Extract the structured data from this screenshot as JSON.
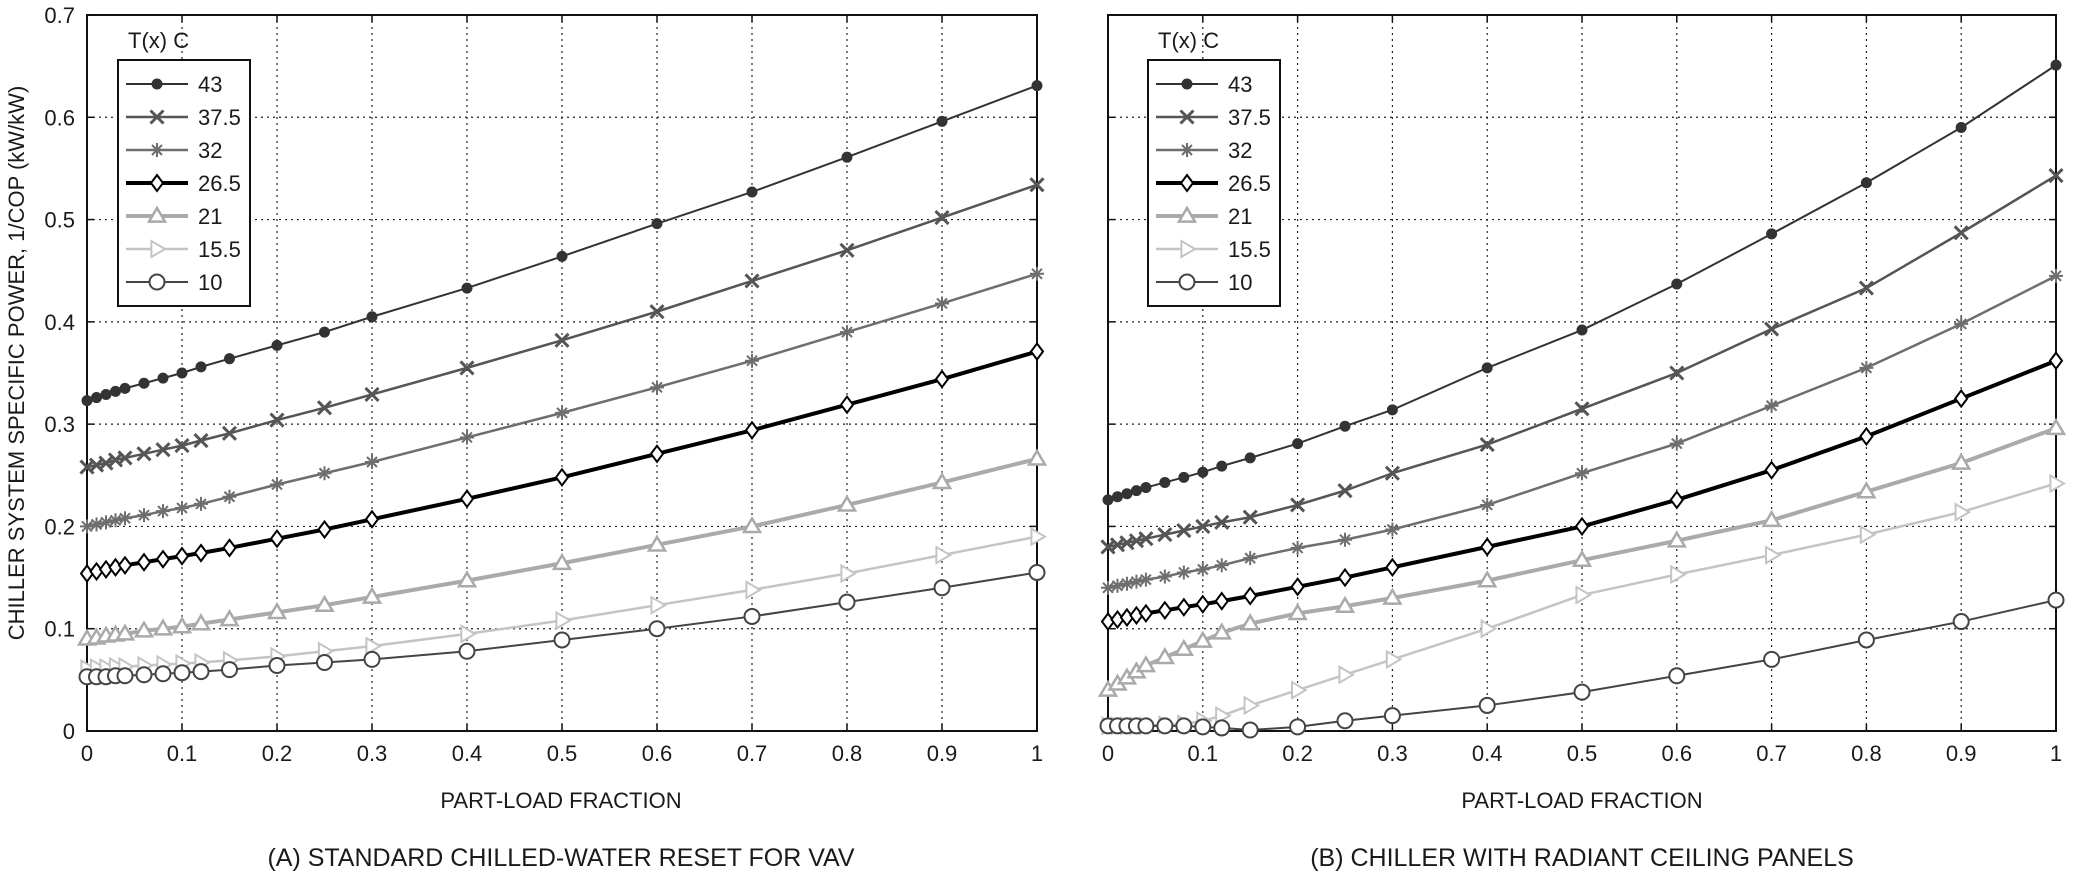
{
  "figure": {
    "ylabel": "CHILLER SYSTEM SPECIFIC POWER, 1/COP (kW/kW)"
  },
  "chart_data": [
    {
      "type": "line",
      "caption": "(A)  STANDARD CHILLED-WATER RESET FOR VAV",
      "xlabel": "PART-LOAD FRACTION",
      "ylabel": "CHILLER SYSTEM SPECIFIC POWER, 1/COP (kW/kW)",
      "xlim": [
        0,
        1
      ],
      "ylim": [
        0,
        0.7
      ],
      "xticks": [
        "0",
        "0.1",
        "0.2",
        "0.3",
        "0.4",
        "0.5",
        "0.6",
        "0.7",
        "0.8",
        "0.9",
        "1"
      ],
      "yticks": [
        "0",
        "0.1",
        "0.2",
        "0.3",
        "0.4",
        "0.5",
        "0.6",
        "0.7"
      ],
      "grid": true,
      "legend": {
        "title": "T(x) C",
        "position": "top-left"
      },
      "x": [
        0,
        0.01,
        0.02,
        0.03,
        0.04,
        0.06,
        0.08,
        0.1,
        0.12,
        0.15,
        0.2,
        0.25,
        0.3,
        0.4,
        0.5,
        0.6,
        0.7,
        0.8,
        0.9,
        1.0
      ],
      "series": [
        {
          "name": "43",
          "color": "#333333",
          "width": 2,
          "marker": "dot",
          "values": [
            0.323,
            0.326,
            0.329,
            0.332,
            0.335,
            0.34,
            0.345,
            0.35,
            0.356,
            0.364,
            0.377,
            0.39,
            0.405,
            0.433,
            0.464,
            0.496,
            0.527,
            0.561,
            0.596,
            0.631
          ]
        },
        {
          "name": "37.5",
          "color": "#555555",
          "width": 2.5,
          "marker": "x",
          "values": [
            0.258,
            0.26,
            0.262,
            0.265,
            0.267,
            0.271,
            0.275,
            0.279,
            0.284,
            0.291,
            0.304,
            0.316,
            0.329,
            0.355,
            0.382,
            0.41,
            0.44,
            0.47,
            0.502,
            0.534
          ]
        },
        {
          "name": "32",
          "color": "#6e6e6e",
          "width": 2.5,
          "marker": "star",
          "values": [
            0.2,
            0.202,
            0.204,
            0.206,
            0.208,
            0.211,
            0.215,
            0.218,
            0.222,
            0.229,
            0.241,
            0.252,
            0.263,
            0.287,
            0.311,
            0.336,
            0.362,
            0.39,
            0.418,
            0.447
          ]
        },
        {
          "name": "26.5",
          "color": "#000000",
          "width": 4,
          "marker": "diamond",
          "values": [
            0.154,
            0.156,
            0.158,
            0.16,
            0.162,
            0.165,
            0.168,
            0.171,
            0.174,
            0.179,
            0.188,
            0.197,
            0.207,
            0.227,
            0.248,
            0.271,
            0.294,
            0.319,
            0.344,
            0.371
          ]
        },
        {
          "name": "21",
          "color": "#aaaaaa",
          "width": 4,
          "marker": "triangle-up",
          "values": [
            0.09,
            0.091,
            0.093,
            0.094,
            0.095,
            0.098,
            0.1,
            0.102,
            0.105,
            0.109,
            0.116,
            0.123,
            0.131,
            0.147,
            0.164,
            0.182,
            0.2,
            0.221,
            0.243,
            0.266
          ]
        },
        {
          "name": "15.5",
          "color": "#c4c4c4",
          "width": 2.5,
          "marker": "triangle-right",
          "values": [
            0.061,
            0.062,
            0.062,
            0.063,
            0.063,
            0.064,
            0.065,
            0.066,
            0.067,
            0.069,
            0.073,
            0.078,
            0.083,
            0.095,
            0.108,
            0.123,
            0.138,
            0.154,
            0.172,
            0.19
          ]
        },
        {
          "name": "10",
          "color": "#444444",
          "width": 2,
          "marker": "circle",
          "values": [
            0.053,
            0.053,
            0.053,
            0.054,
            0.054,
            0.055,
            0.056,
            0.057,
            0.058,
            0.06,
            0.064,
            0.067,
            0.07,
            0.078,
            0.089,
            0.1,
            0.112,
            0.126,
            0.14,
            0.155
          ]
        }
      ]
    },
    {
      "type": "line",
      "caption": "(B)  CHILLER WITH RADIANT CEILING PANELS",
      "xlabel": "PART-LOAD FRACTION",
      "xlim": [
        0,
        1
      ],
      "ylim": [
        0,
        0.7
      ],
      "xticks": [
        "0",
        "0.1",
        "0.2",
        "0.3",
        "0.4",
        "0.5",
        "0.6",
        "0.7",
        "0.8",
        "0.9",
        "1"
      ],
      "grid": true,
      "legend": {
        "title": "T(x) C",
        "position": "top-left"
      },
      "x": [
        0,
        0.01,
        0.02,
        0.03,
        0.04,
        0.06,
        0.08,
        0.1,
        0.12,
        0.15,
        0.2,
        0.25,
        0.3,
        0.4,
        0.5,
        0.6,
        0.7,
        0.8,
        0.9,
        1.0
      ],
      "series": [
        {
          "name": "43",
          "color": "#333333",
          "width": 2,
          "marker": "dot",
          "values": [
            0.226,
            0.229,
            0.232,
            0.235,
            0.238,
            0.243,
            0.248,
            0.253,
            0.259,
            0.267,
            0.281,
            0.298,
            0.314,
            0.355,
            0.392,
            0.437,
            0.486,
            0.536,
            0.59,
            0.651
          ]
        },
        {
          "name": "37.5",
          "color": "#555555",
          "width": 2.5,
          "marker": "x",
          "values": [
            0.18,
            0.182,
            0.184,
            0.186,
            0.188,
            0.192,
            0.196,
            0.2,
            0.204,
            0.209,
            0.221,
            0.235,
            0.252,
            0.28,
            0.315,
            0.35,
            0.393,
            0.433,
            0.487,
            0.543
          ]
        },
        {
          "name": "32",
          "color": "#6e6e6e",
          "width": 2.5,
          "marker": "star",
          "values": [
            0.14,
            0.142,
            0.144,
            0.146,
            0.148,
            0.151,
            0.155,
            0.158,
            0.162,
            0.169,
            0.179,
            0.187,
            0.197,
            0.221,
            0.252,
            0.281,
            0.318,
            0.355,
            0.398,
            0.445
          ]
        },
        {
          "name": "26.5",
          "color": "#000000",
          "width": 4,
          "marker": "diamond",
          "values": [
            0.107,
            0.109,
            0.111,
            0.113,
            0.115,
            0.118,
            0.121,
            0.124,
            0.127,
            0.132,
            0.141,
            0.15,
            0.16,
            0.18,
            0.2,
            0.226,
            0.255,
            0.288,
            0.325,
            0.362
          ]
        },
        {
          "name": "21",
          "color": "#aaaaaa",
          "width": 4,
          "marker": "triangle-up",
          "values": [
            0.04,
            0.046,
            0.052,
            0.058,
            0.064,
            0.072,
            0.08,
            0.088,
            0.096,
            0.105,
            0.115,
            0.122,
            0.13,
            0.147,
            0.167,
            0.186,
            0.206,
            0.234,
            0.262,
            0.296
          ]
        },
        {
          "name": "15.5",
          "color": "#c4c4c4",
          "width": 2.5,
          "marker": "triangle-right",
          "values": [
            0.005,
            0.005,
            0.005,
            0.005,
            0.005,
            0.006,
            0.007,
            0.01,
            0.015,
            0.025,
            0.04,
            0.055,
            0.07,
            0.1,
            0.133,
            0.153,
            0.172,
            0.192,
            0.214,
            0.242
          ]
        },
        {
          "name": "10",
          "color": "#444444",
          "width": 2,
          "marker": "circle",
          "values": [
            0.005,
            0.005,
            0.005,
            0.005,
            0.005,
            0.005,
            0.005,
            0.004,
            0.003,
            0.001,
            0.004,
            0.01,
            0.015,
            0.025,
            0.038,
            0.054,
            0.07,
            0.089,
            0.107,
            0.128
          ]
        }
      ]
    }
  ]
}
